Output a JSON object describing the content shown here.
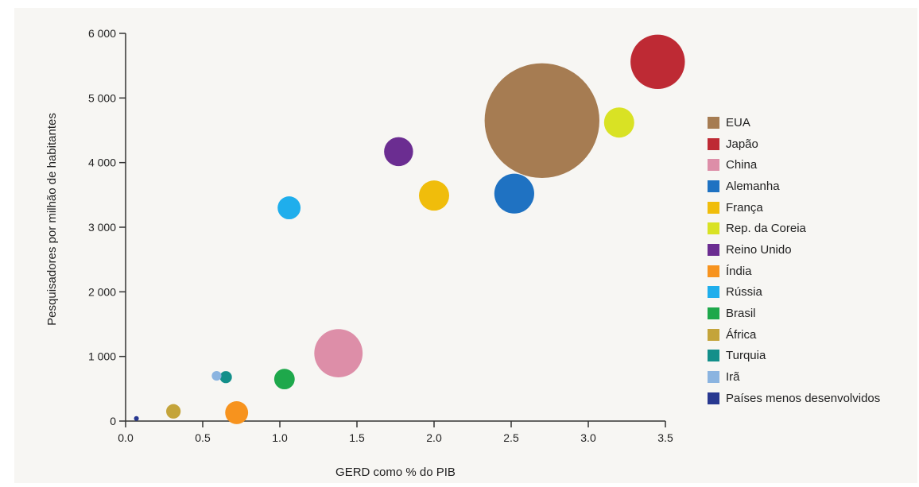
{
  "chart_data": {
    "type": "scatter",
    "title": "",
    "xlabel": "GERD como % do PIB",
    "ylabel": "Pesquisadores por milhão de habitantes",
    "xlim": [
      0,
      3.5
    ],
    "ylim": [
      0,
      6000
    ],
    "x_ticks": [
      "0.0",
      "0.5",
      "1.0",
      "1.5",
      "2.0",
      "2.5",
      "3.0",
      "3.5"
    ],
    "y_ticks": [
      "0",
      "1 000",
      "2 000",
      "3 000",
      "4 000",
      "5 000",
      "6 000"
    ],
    "grid": false,
    "legend_position": "right",
    "bubble_size_encoding": "relative size (visual)",
    "series": [
      {
        "name": "EUA",
        "color": "#a67c52",
        "x": 2.7,
        "y": 4650,
        "size": 9.5
      },
      {
        "name": "Japão",
        "color": "#be2a34",
        "x": 3.45,
        "y": 5560,
        "size": 4.5
      },
      {
        "name": "China",
        "color": "#dd8ea8",
        "x": 1.38,
        "y": 1050,
        "size": 4.0
      },
      {
        "name": "Alemanha",
        "color": "#1f72c2",
        "x": 2.52,
        "y": 3520,
        "size": 3.3
      },
      {
        "name": "França",
        "color": "#f0bd0b",
        "x": 2.0,
        "y": 3490,
        "size": 2.5
      },
      {
        "name": "Rep. da Coreia",
        "color": "#d9e224",
        "x": 3.2,
        "y": 4620,
        "size": 2.5
      },
      {
        "name": "Reino Unido",
        "color": "#6b2d91",
        "x": 1.77,
        "y": 4170,
        "size": 2.4
      },
      {
        "name": "Índia",
        "color": "#f7931e",
        "x": 0.72,
        "y": 130,
        "size": 1.9
      },
      {
        "name": "Rússia",
        "color": "#1faeec",
        "x": 1.06,
        "y": 3300,
        "size": 1.9
      },
      {
        "name": "Brasil",
        "color": "#1ea84b",
        "x": 1.03,
        "y": 650,
        "size": 1.7
      },
      {
        "name": "África",
        "color": "#c4a43a",
        "x": 0.31,
        "y": 150,
        "size": 1.2
      },
      {
        "name": "Turquia",
        "color": "#138f8a",
        "x": 0.65,
        "y": 680,
        "size": 1.0
      },
      {
        "name": "Irã",
        "color": "#8bb4e0",
        "x": 0.59,
        "y": 700,
        "size": 0.8
      },
      {
        "name": "Países menos desenvolvidos",
        "color": "#283890",
        "x": 0.07,
        "y": 40,
        "size": 0.4
      }
    ]
  }
}
